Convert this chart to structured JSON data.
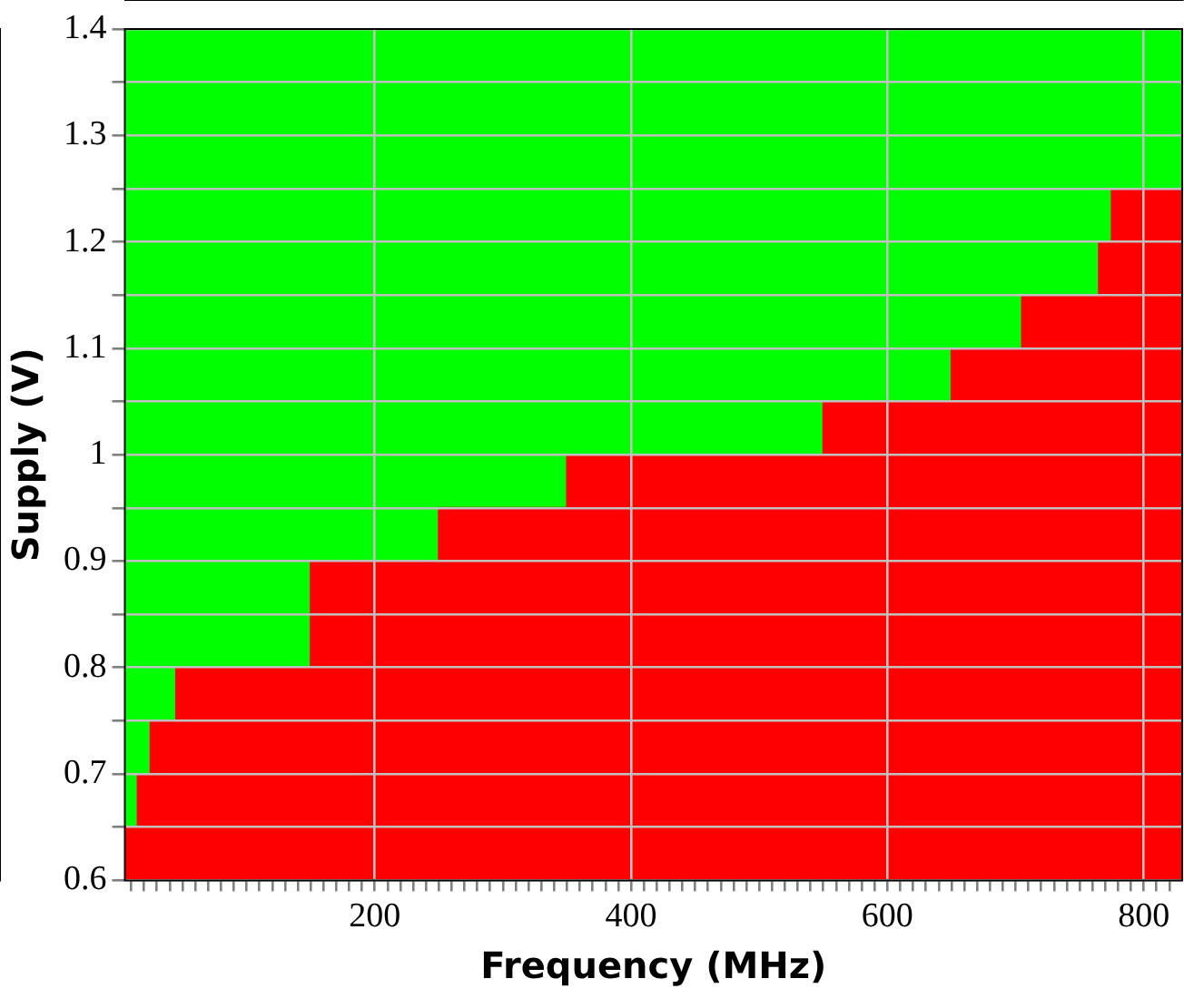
{
  "chart_data": {
    "type": "area",
    "xlabel": "Frequency (MHz)",
    "ylabel": "Supply (V)",
    "x": [
      5,
      15,
      15,
      25,
      25,
      45,
      45,
      150,
      150,
      250,
      250,
      350,
      350,
      550,
      550,
      650,
      650,
      705,
      705,
      765,
      765,
      775,
      775,
      830
    ],
    "series": [
      {
        "color": "#ff0000",
        "values": [
          0.65,
          0.65,
          0.7,
          0.7,
          0.75,
          0.75,
          0.8,
          0.8,
          0.9,
          0.9,
          0.95,
          0.95,
          1.0,
          1.0,
          1.05,
          1.05,
          1.1,
          1.1,
          1.15,
          1.15,
          1.2,
          1.2,
          1.25,
          1.25
        ]
      }
    ],
    "bands": [
      {
        "axis": "y",
        "from": 0.6,
        "to": 1.4,
        "color": "#00ff00"
      }
    ],
    "xlim": [
      5,
      830
    ],
    "ylim": [
      0.6,
      1.4
    ],
    "xticks": [
      {
        "value": 10,
        "label": null
      },
      {
        "value": 20,
        "label": null
      },
      {
        "value": 30,
        "label": null
      },
      {
        "value": 40,
        "label": null
      },
      {
        "value": 50,
        "label": null
      },
      {
        "value": 60,
        "label": null
      },
      {
        "value": 70,
        "label": null
      },
      {
        "value": 80,
        "label": null
      },
      {
        "value": 90,
        "label": null
      },
      {
        "value": 100,
        "label": null
      },
      {
        "value": 110,
        "label": null
      },
      {
        "value": 120,
        "label": null
      },
      {
        "value": 130,
        "label": null
      },
      {
        "value": 140,
        "label": null
      },
      {
        "value": 150,
        "label": null
      },
      {
        "value": 160,
        "label": null
      },
      {
        "value": 170,
        "label": null
      },
      {
        "value": 180,
        "label": null
      },
      {
        "value": 190,
        "label": null
      },
      200,
      {
        "value": 210,
        "label": null
      },
      {
        "value": 220,
        "label": null
      },
      {
        "value": 230,
        "label": null
      },
      {
        "value": 240,
        "label": null
      },
      {
        "value": 250,
        "label": null
      },
      {
        "value": 260,
        "label": null
      },
      {
        "value": 270,
        "label": null
      },
      {
        "value": 280,
        "label": null
      },
      {
        "value": 290,
        "label": null
      },
      {
        "value": 300,
        "label": null
      },
      {
        "value": 310,
        "label": null
      },
      {
        "value": 320,
        "label": null
      },
      {
        "value": 330,
        "label": null
      },
      {
        "value": 340,
        "label": null
      },
      {
        "value": 350,
        "label": null
      },
      {
        "value": 360,
        "label": null
      },
      {
        "value": 370,
        "label": null
      },
      {
        "value": 380,
        "label": null
      },
      {
        "value": 390,
        "label": null
      },
      400,
      {
        "value": 410,
        "label": null
      },
      {
        "value": 420,
        "label": null
      },
      {
        "value": 430,
        "label": null
      },
      {
        "value": 440,
        "label": null
      },
      {
        "value": 450,
        "label": null
      },
      {
        "value": 460,
        "label": null
      },
      {
        "value": 470,
        "label": null
      },
      {
        "value": 480,
        "label": null
      },
      {
        "value": 490,
        "label": null
      },
      {
        "value": 500,
        "label": null
      },
      {
        "value": 510,
        "label": null
      },
      {
        "value": 520,
        "label": null
      },
      {
        "value": 530,
        "label": null
      },
      {
        "value": 540,
        "label": null
      },
      {
        "value": 550,
        "label": null
      },
      {
        "value": 560,
        "label": null
      },
      {
        "value": 570,
        "label": null
      },
      {
        "value": 580,
        "label": null
      },
      {
        "value": 590,
        "label": null
      },
      600,
      {
        "value": 610,
        "label": null
      },
      {
        "value": 620,
        "label": null
      },
      {
        "value": 630,
        "label": null
      },
      {
        "value": 640,
        "label": null
      },
      {
        "value": 650,
        "label": null
      },
      {
        "value": 660,
        "label": null
      },
      {
        "value": 670,
        "label": null
      },
      {
        "value": 680,
        "label": null
      },
      {
        "value": 690,
        "label": null
      },
      {
        "value": 700,
        "label": null
      },
      {
        "value": 710,
        "label": null
      },
      {
        "value": 720,
        "label": null
      },
      {
        "value": 730,
        "label": null
      },
      {
        "value": 740,
        "label": null
      },
      {
        "value": 750,
        "label": null
      },
      {
        "value": 760,
        "label": null
      },
      {
        "value": 770,
        "label": null
      },
      {
        "value": 780,
        "label": null
      },
      {
        "value": 790,
        "label": null
      },
      800,
      {
        "value": 810,
        "label": null
      },
      {
        "value": 820,
        "label": null
      }
    ],
    "yticks": [
      0.6,
      {
        "value": 0.65,
        "label": null
      },
      0.7,
      {
        "value": 0.75,
        "label": null
      },
      0.8,
      {
        "value": 0.85,
        "label": null
      },
      0.9,
      {
        "value": 0.95,
        "label": null
      },
      1,
      {
        "value": 1.05,
        "label": null
      },
      1.1,
      {
        "value": 1.15,
        "label": null
      },
      1.2,
      {
        "value": 1.25,
        "label": null
      },
      1.3,
      {
        "value": 1.35,
        "label": null
      },
      1.4
    ],
    "grid": true,
    "legend": false,
    "marker": "none"
  }
}
